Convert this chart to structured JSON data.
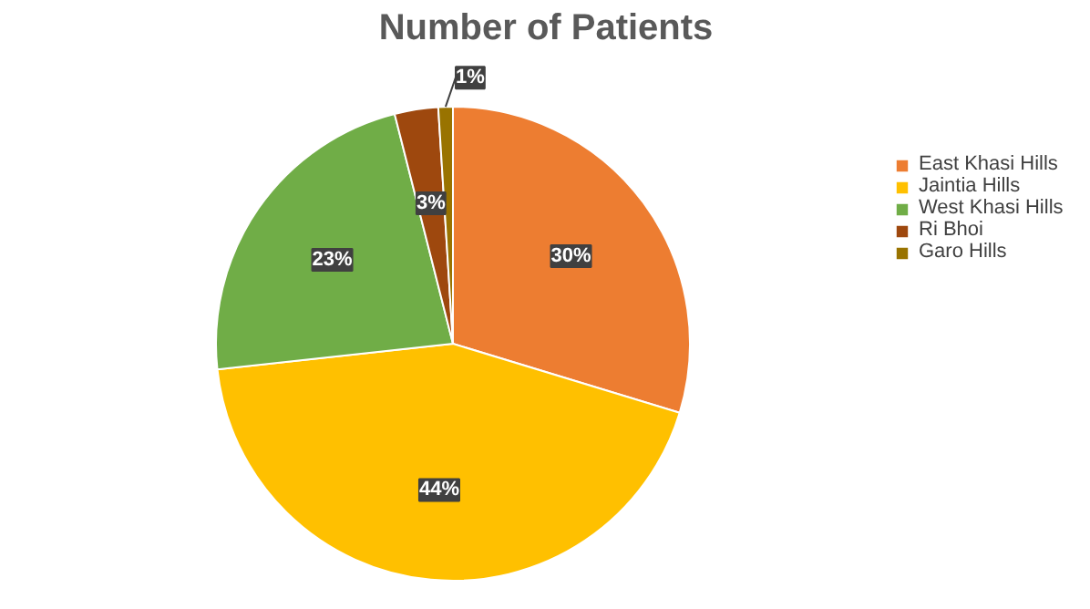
{
  "chart_data": {
    "type": "pie",
    "title": "Number of Patients",
    "categories": [
      "East Khasi Hills",
      "Jaintia Hills",
      "West Khasi Hills",
      "Ri Bhoi",
      "Garo Hills"
    ],
    "values": [
      30,
      44,
      23,
      3,
      1
    ],
    "value_labels": [
      "30%",
      "44%",
      "23%",
      "3%",
      "1%"
    ],
    "colors": [
      "#ed7d31",
      "#ffc000",
      "#70ad47",
      "#9e480e",
      "#997300"
    ],
    "legend": "right"
  }
}
